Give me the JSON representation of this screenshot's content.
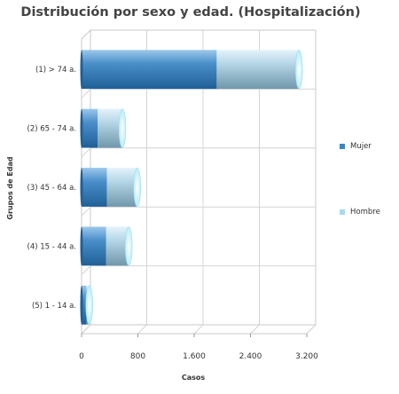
{
  "chart_data": {
    "type": "bar",
    "orientation": "horizontal",
    "stacked": true,
    "style": "3d-cylinder",
    "title": "Distribución por sexo y edad. (Hospitalización)",
    "xlabel": "Casos",
    "ylabel": "Grupos de Edad",
    "xlim": [
      0,
      3200
    ],
    "xticks": [
      0,
      800,
      1600,
      2400,
      3200
    ],
    "xtick_labels": [
      "0",
      "800",
      "1.600",
      "2.400",
      "3.200"
    ],
    "grid": true,
    "legend_position": "right",
    "categories": [
      "(1) > 74 a.",
      "(2) 65 - 74 a.",
      "(3) 45 - 64 a.",
      "(4) 15 - 44 a.",
      "(5) 1 - 14 a."
    ],
    "series": [
      {
        "name": "Mujer",
        "color": "#4a8fc9",
        "values": [
          1920,
          230,
          360,
          350,
          70
        ]
      },
      {
        "name": "Hombre",
        "color": "#a8d8f0",
        "values": [
          1170,
          350,
          430,
          320,
          40
        ]
      }
    ]
  }
}
